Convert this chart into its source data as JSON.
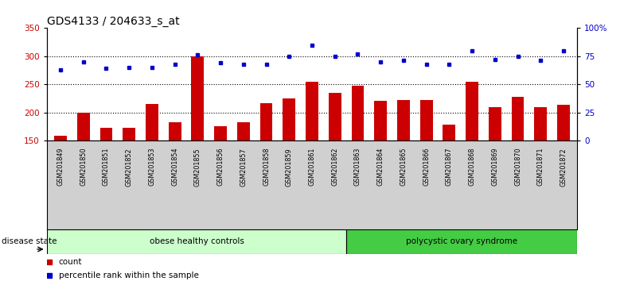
{
  "title": "GDS4133 / 204633_s_at",
  "samples": [
    "GSM201849",
    "GSM201850",
    "GSM201851",
    "GSM201852",
    "GSM201853",
    "GSM201854",
    "GSM201855",
    "GSM201856",
    "GSM201857",
    "GSM201858",
    "GSM201859",
    "GSM201861",
    "GSM201862",
    "GSM201863",
    "GSM201864",
    "GSM201865",
    "GSM201866",
    "GSM201867",
    "GSM201868",
    "GSM201869",
    "GSM201870",
    "GSM201871",
    "GSM201872"
  ],
  "counts": [
    158,
    200,
    172,
    172,
    215,
    183,
    300,
    175,
    183,
    217,
    225,
    255,
    235,
    248,
    220,
    222,
    222,
    178,
    255,
    210,
    228,
    210,
    214
  ],
  "percentiles_pct": [
    63,
    70,
    64,
    65,
    65,
    68,
    76,
    69,
    68,
    68,
    75,
    85,
    75,
    77,
    70,
    71,
    68,
    68,
    80,
    72,
    75,
    71,
    80
  ],
  "group1_label": "obese healthy controls",
  "group1_count": 13,
  "group2_label": "polycystic ovary syndrome",
  "group2_count": 10,
  "ylim_left": [
    150,
    350
  ],
  "ylim_right": [
    0,
    100
  ],
  "yticks_left": [
    150,
    200,
    250,
    300,
    350
  ],
  "yticks_right": [
    0,
    25,
    50,
    75,
    100
  ],
  "ytick_labels_right": [
    "0",
    "25",
    "50",
    "75",
    "100%"
  ],
  "bar_color": "#cc0000",
  "dot_color": "#0000cc",
  "bar_bottom": 150,
  "bg_color": "#ffffff",
  "xtick_bg": "#d0d0d0",
  "group1_bg": "#ccffcc",
  "group2_bg": "#44cc44",
  "label_count": "count",
  "label_percentile": "percentile rank within the sample",
  "disease_state_label": "disease state",
  "title_fontsize": 10,
  "tick_fontsize": 7.5
}
